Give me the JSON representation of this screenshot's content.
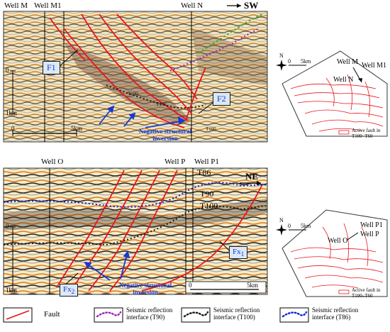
{
  "colors": {
    "fault": "#e8141c",
    "horizon_t90": "#a020c0",
    "horizon_t100": "#1a1a1a",
    "horizon_t86": "#1020d8",
    "annotation_blue": "#1838d0",
    "label_box_border": "#1a1a1a"
  },
  "section_top": {
    "wells": [
      "Well M",
      "Well M1",
      "Well N"
    ],
    "direction": "SW",
    "faults": [
      "F1",
      "F2"
    ],
    "annotation": "Negative structural inversion",
    "time_tick_0": "0",
    "time_tick_1": "1km",
    "scale_0": "0",
    "scale_5": "5km",
    "horizon_labels": [
      "T100",
      "T100",
      "T100"
    ]
  },
  "section_bottom": {
    "wells": [
      "Well O",
      "Well P",
      "Well P1"
    ],
    "direction": "NE",
    "faults": [
      "Fx",
      "1",
      "Fx",
      "2"
    ],
    "annotation": "Negative structural inversion",
    "horizons": [
      "T86",
      "T90",
      "T100"
    ],
    "time_tick_0": "0",
    "time_tick_1": "1km",
    "scale_0": "0",
    "scale_5": "5km"
  },
  "map_top": {
    "north": "N",
    "scale_0": "0",
    "scale_5": "5km",
    "wells": [
      "Well M",
      "Well M1",
      "Well N"
    ],
    "legend": "Active fault in T100–T60"
  },
  "map_bottom": {
    "north": "N",
    "scale_0": "0",
    "scale_5": "5km",
    "wells": [
      "Well P1",
      "Well P",
      "Well O"
    ],
    "legend": "Active fault in T100–T60"
  },
  "legend": {
    "fault": "Fault",
    "t90": "Seismic reflection interface (T90)",
    "t100": "Seismic reflection interface (T100)",
    "t86": "Seismic reflection interface (T86)"
  }
}
